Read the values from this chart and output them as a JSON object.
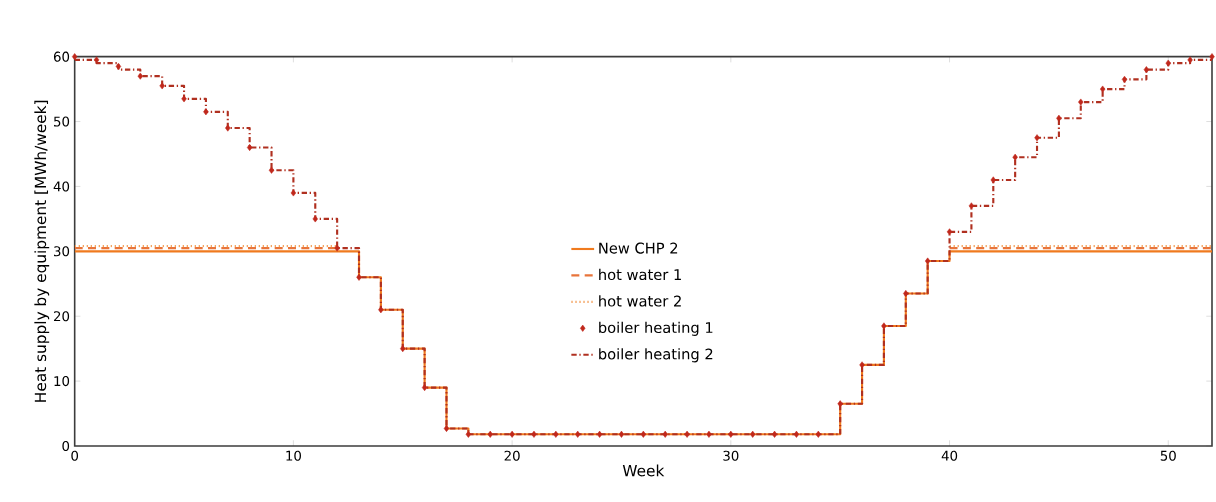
{
  "chart_data": {
    "type": "step",
    "xlabel": "Week",
    "ylabel": "Heat supply by equipment [MWh/week]",
    "xlim": [
      0,
      52
    ],
    "ylim": [
      0,
      60
    ],
    "xticks": [
      0,
      10,
      20,
      30,
      40,
      50
    ],
    "yticks": [
      0,
      10,
      20,
      30,
      40,
      50,
      60
    ],
    "legend": "center",
    "grid": false,
    "x": [
      0,
      1,
      2,
      3,
      4,
      5,
      6,
      7,
      8,
      9,
      10,
      11,
      12,
      13,
      14,
      15,
      16,
      17,
      18,
      19,
      20,
      21,
      22,
      23,
      24,
      25,
      26,
      27,
      28,
      29,
      30,
      31,
      32,
      33,
      34,
      35,
      36,
      37,
      38,
      39,
      40,
      41,
      42,
      43,
      44,
      45,
      46,
      47,
      48,
      49,
      50,
      51,
      52
    ],
    "series": [
      {
        "name": "New CHP 2",
        "color": "#f07a1e",
        "line_style": "solid",
        "values": [
          30,
          30,
          30,
          30,
          30,
          30,
          30,
          30,
          30,
          30,
          30,
          30,
          30,
          26,
          21,
          15,
          9,
          2.7,
          1.8,
          1.8,
          1.8,
          1.8,
          1.8,
          1.8,
          1.8,
          1.8,
          1.8,
          1.8,
          1.8,
          1.8,
          1.8,
          1.8,
          1.8,
          1.8,
          1.8,
          6.5,
          12.5,
          18.5,
          23.5,
          28.5,
          30,
          30,
          30,
          30,
          30,
          30,
          30,
          30,
          30,
          30,
          30,
          30,
          30
        ]
      },
      {
        "name": "hot water 1",
        "color": "#e8743b",
        "line_style": "dashed",
        "values": [
          30.5,
          30.5,
          30.5,
          30.5,
          30.5,
          30.5,
          30.5,
          30.5,
          30.5,
          30.5,
          30.5,
          30.5,
          30.5,
          null,
          null,
          null,
          null,
          null,
          null,
          null,
          null,
          null,
          null,
          null,
          null,
          null,
          null,
          null,
          null,
          null,
          null,
          null,
          null,
          null,
          null,
          null,
          null,
          null,
          null,
          null,
          30.5,
          30.5,
          30.5,
          30.5,
          30.5,
          30.5,
          30.5,
          30.5,
          30.5,
          30.5,
          30.5,
          30.5,
          30.5
        ]
      },
      {
        "name": "hot water 2",
        "color": "#f4a460",
        "line_style": "dotted",
        "values": [
          30.8,
          30.8,
          30.8,
          30.8,
          30.8,
          30.8,
          30.8,
          30.8,
          30.8,
          30.8,
          30.8,
          30.8,
          30.8,
          null,
          null,
          null,
          null,
          null,
          null,
          null,
          null,
          null,
          null,
          null,
          null,
          null,
          null,
          null,
          null,
          null,
          null,
          null,
          null,
          null,
          null,
          null,
          null,
          null,
          null,
          null,
          30.8,
          30.8,
          30.8,
          30.8,
          30.8,
          30.8,
          30.8,
          30.8,
          30.8,
          30.8,
          30.8,
          30.8,
          30.8
        ]
      },
      {
        "name": "boiler heating 1",
        "type": "scatter",
        "marker": "diamond",
        "color": "#c0281c",
        "values": [
          60,
          59.5,
          58.5,
          57,
          55.5,
          53.5,
          51.5,
          49,
          46,
          42.5,
          39,
          35,
          30.5,
          26,
          21,
          15,
          9,
          2.7,
          1.8,
          1.8,
          1.8,
          1.8,
          1.8,
          1.8,
          1.8,
          1.8,
          1.8,
          1.8,
          1.8,
          1.8,
          1.8,
          1.8,
          1.8,
          1.8,
          1.8,
          6.5,
          12.5,
          18.5,
          23.5,
          28.5,
          33,
          37,
          41,
          44.5,
          47.5,
          50.5,
          53,
          55,
          56.5,
          58,
          59,
          59.5,
          60
        ]
      },
      {
        "name": "boiler heating 2",
        "color": "#b03020",
        "line_style": "dashdot",
        "values": [
          59.5,
          59,
          58,
          57,
          55.5,
          53.5,
          51.5,
          49,
          46,
          42.5,
          39,
          35,
          30.5,
          26,
          21,
          15,
          9,
          2.7,
          1.8,
          1.8,
          1.8,
          1.8,
          1.8,
          1.8,
          1.8,
          1.8,
          1.8,
          1.8,
          1.8,
          1.8,
          1.8,
          1.8,
          1.8,
          1.8,
          1.8,
          6.5,
          12.5,
          18.5,
          23.5,
          28.5,
          33,
          37,
          41,
          44.5,
          47.5,
          50.5,
          53,
          55,
          56.5,
          58,
          59,
          59.5,
          60
        ]
      }
    ]
  }
}
